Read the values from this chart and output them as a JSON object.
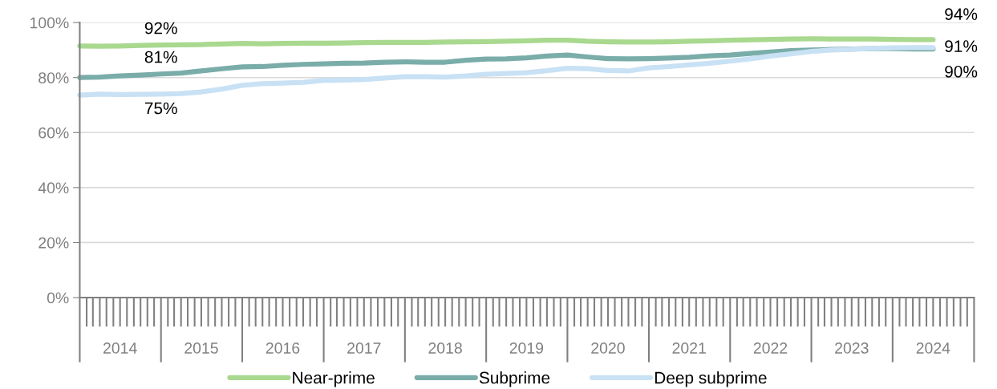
{
  "chart_data": {
    "type": "line",
    "x": [
      "2014-01",
      "2014-04",
      "2014-07",
      "2014-10",
      "2015-01",
      "2015-04",
      "2015-07",
      "2015-10",
      "2016-01",
      "2016-04",
      "2016-07",
      "2016-10",
      "2017-01",
      "2017-04",
      "2017-07",
      "2017-10",
      "2018-01",
      "2018-04",
      "2018-07",
      "2018-10",
      "2019-01",
      "2019-04",
      "2019-07",
      "2019-10",
      "2020-01",
      "2020-04",
      "2020-07",
      "2020-10",
      "2021-01",
      "2021-04",
      "2021-07",
      "2021-10",
      "2022-01",
      "2022-04",
      "2022-07",
      "2022-10",
      "2023-01",
      "2023-04",
      "2023-07",
      "2023-10",
      "2024-01",
      "2024-04",
      "2024-07"
    ],
    "series": [
      {
        "name": "Near-prime",
        "color": "#a9d88f",
        "values": [
          91.5,
          91.4,
          91.5,
          91.7,
          91.8,
          91.9,
          92.0,
          92.2,
          92.4,
          92.3,
          92.4,
          92.5,
          92.5,
          92.6,
          92.7,
          92.8,
          92.8,
          92.8,
          92.9,
          93.0,
          93.1,
          93.2,
          93.4,
          93.6,
          93.6,
          93.2,
          93.0,
          92.9,
          92.9,
          93.0,
          93.2,
          93.4,
          93.6,
          93.7,
          93.9,
          94.0,
          94.1,
          94.0,
          94.0,
          94.0,
          93.9,
          93.8,
          93.8
        ]
      },
      {
        "name": "Subprime",
        "color": "#7aada9",
        "values": [
          80.0,
          80.2,
          80.6,
          80.9,
          81.3,
          81.6,
          82.4,
          83.2,
          83.9,
          84.0,
          84.5,
          84.8,
          85.0,
          85.2,
          85.3,
          85.6,
          85.7,
          85.6,
          85.6,
          86.3,
          86.7,
          86.8,
          87.2,
          87.8,
          88.2,
          87.5,
          86.9,
          86.8,
          86.9,
          87.1,
          87.4,
          87.9,
          88.2,
          88.8,
          89.3,
          89.8,
          90.0,
          90.2,
          90.4,
          90.5,
          90.5,
          90.4,
          90.4
        ]
      },
      {
        "name": "Deep subprime",
        "color": "#c9e1f4",
        "values": [
          73.6,
          74.0,
          73.8,
          73.9,
          74.0,
          74.2,
          74.8,
          75.8,
          77.2,
          77.8,
          78.0,
          78.3,
          79.0,
          79.1,
          79.3,
          79.8,
          80.3,
          80.3,
          80.2,
          80.6,
          81.2,
          81.5,
          81.8,
          82.5,
          83.4,
          83.2,
          82.6,
          82.4,
          83.5,
          84.0,
          84.6,
          85.2,
          86.0,
          86.8,
          87.8,
          88.6,
          89.5,
          90.0,
          90.3,
          90.6,
          90.8,
          90.9,
          90.9
        ]
      }
    ],
    "xlim": [
      "2014-01-01",
      "2025-01-01"
    ],
    "xticks": [
      {
        "value": "2014-07-01",
        "label": "2014"
      },
      {
        "value": "2015-07-01",
        "label": "2015"
      },
      {
        "value": "2016-07-01",
        "label": "2016"
      },
      {
        "value": "2017-07-01",
        "label": "2017"
      },
      {
        "value": "2018-07-01",
        "label": "2018"
      },
      {
        "value": "2019-07-01",
        "label": "2019"
      },
      {
        "value": "2020-07-01",
        "label": "2020"
      },
      {
        "value": "2021-07-01",
        "label": "2021"
      },
      {
        "value": "2022-07-01",
        "label": "2022"
      },
      {
        "value": "2023-07-01",
        "label": "2023"
      },
      {
        "value": "2024-07-01",
        "label": "2024"
      }
    ],
    "ylim": [
      0,
      100
    ],
    "yticks": [
      {
        "value": 0,
        "label": "0%"
      },
      {
        "value": 20,
        "label": "20%"
      },
      {
        "value": 40,
        "label": "40%"
      },
      {
        "value": 60,
        "label": "60%"
      },
      {
        "value": 80,
        "label": "80%"
      },
      {
        "value": 100,
        "label": "100%"
      }
    ],
    "grid": "y",
    "legend": "bottom",
    "marker": "none",
    "line_style": "solid",
    "annotations": [
      {
        "text": "92%",
        "x": "2015-01",
        "y": 91.8
      },
      {
        "text": "81%",
        "x": "2015-01",
        "y": 81.3
      },
      {
        "text": "75%",
        "x": "2015-01",
        "y": 74.0
      },
      {
        "text": "94%",
        "x": "2024-07",
        "y": 93.8
      },
      {
        "text": "91%",
        "x": "2024-07",
        "y": 90.9
      },
      {
        "text": "90%",
        "x": "2024-07",
        "y": 90.4
      }
    ]
  }
}
